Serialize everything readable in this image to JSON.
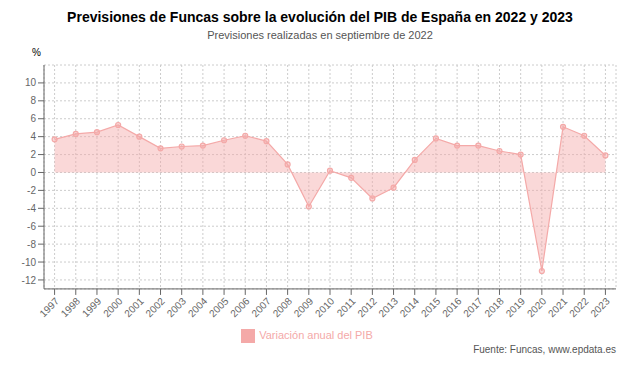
{
  "chart_data": {
    "type": "area",
    "title": "Previsiones de Funcas sobre la evolución del PIB de España en 2022 y 2023",
    "subtitle": "Previsiones realizadas en septiembre de 2022",
    "y_label": "%",
    "source": "Fuente: Funcas, www.epdata.es",
    "x": [
      1997,
      1998,
      1999,
      2000,
      2001,
      2002,
      2003,
      2004,
      2005,
      2006,
      2007,
      2008,
      2009,
      2010,
      2011,
      2012,
      2013,
      2014,
      2015,
      2016,
      2017,
      2018,
      2019,
      2020,
      2021,
      2022,
      2023
    ],
    "xlim": [
      1996.5,
      2023.5
    ],
    "xticks": [
      1997,
      1998,
      1999,
      2000,
      2001,
      2002,
      2003,
      2004,
      2005,
      2006,
      2007,
      2008,
      2009,
      2010,
      2011,
      2012,
      2013,
      2014,
      2015,
      2016,
      2017,
      2018,
      2019,
      2020,
      2021,
      2022,
      2023
    ],
    "ylim": [
      -13,
      12
    ],
    "yticks": [
      -12,
      -10,
      -8,
      -6,
      -4,
      -2,
      0,
      2,
      4,
      6,
      8,
      10
    ],
    "series": [
      {
        "name": "Variación anual del PIB",
        "color": "#f4a9a8",
        "marker": "circle",
        "values": [
          3.7,
          4.3,
          4.5,
          5.3,
          4.0,
          2.7,
          2.9,
          3.0,
          3.6,
          4.1,
          3.5,
          0.9,
          -3.8,
          0.2,
          -0.6,
          -2.9,
          -1.7,
          1.4,
          3.8,
          3.0,
          3.0,
          2.4,
          2.0,
          -11.0,
          5.1,
          4.1,
          1.9
        ]
      }
    ],
    "grid": true,
    "legend": "bottom"
  }
}
